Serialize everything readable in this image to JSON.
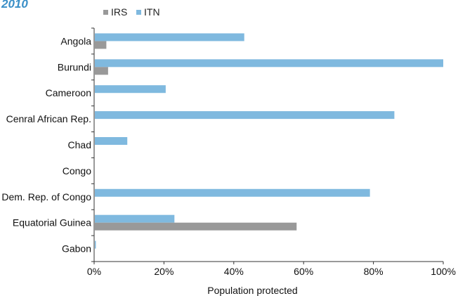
{
  "chart_data": {
    "type": "bar",
    "orientation": "horizontal",
    "title": "2010",
    "xlabel": "Population protected",
    "ylabel": "",
    "xlim": [
      0,
      100
    ],
    "x_ticks": [
      "0%",
      "20%",
      "40%",
      "60%",
      "80%",
      "100%"
    ],
    "categories": [
      "Angola",
      "Burundi",
      "Cameroon",
      "Cenral African Rep.",
      "Chad",
      "Congo",
      "Dem. Rep. of Congo",
      "Equatorial Guinea",
      "Gabon"
    ],
    "series": [
      {
        "name": "ITN",
        "color": "#7fb9df",
        "values": [
          43,
          100,
          20.5,
          86,
          9.5,
          0,
          79,
          23,
          0.5
        ]
      },
      {
        "name": "IRS",
        "color": "#999999",
        "values": [
          3.5,
          4,
          0,
          0,
          0,
          0,
          0,
          58,
          0
        ]
      }
    ],
    "legend": {
      "position": "top-left",
      "entries": [
        "IRS",
        "ITN"
      ]
    },
    "grid": false
  }
}
